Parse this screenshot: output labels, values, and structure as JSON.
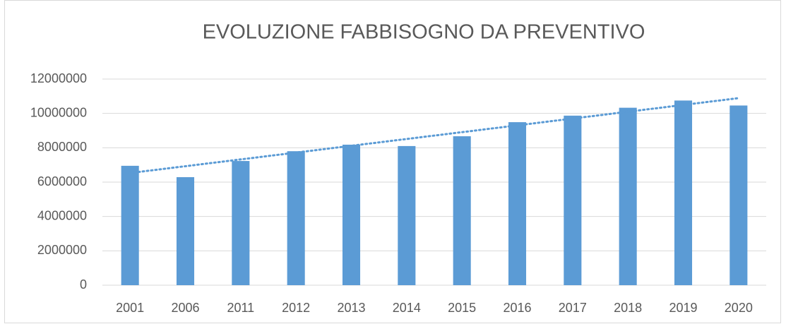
{
  "chart_data": {
    "type": "bar",
    "title": "EVOLUZIONE FABBISOGNO DA PREVENTIVO",
    "categories": [
      "2001",
      "2006",
      "2011",
      "2012",
      "2013",
      "2014",
      "2015",
      "2016",
      "2017",
      "2018",
      "2019",
      "2020"
    ],
    "values": [
      6950000,
      6290000,
      7230000,
      7800000,
      8180000,
      8100000,
      8670000,
      9490000,
      9870000,
      10330000,
      10750000,
      10460000
    ],
    "color": "#5b9bd5",
    "ylim": [
      0,
      12000000
    ],
    "yticks": [
      0,
      2000000,
      4000000,
      6000000,
      8000000,
      10000000,
      12000000
    ],
    "grid": true,
    "trendline": {
      "start": 6530000,
      "end": 10890000,
      "color": "#5b9bd5"
    }
  }
}
